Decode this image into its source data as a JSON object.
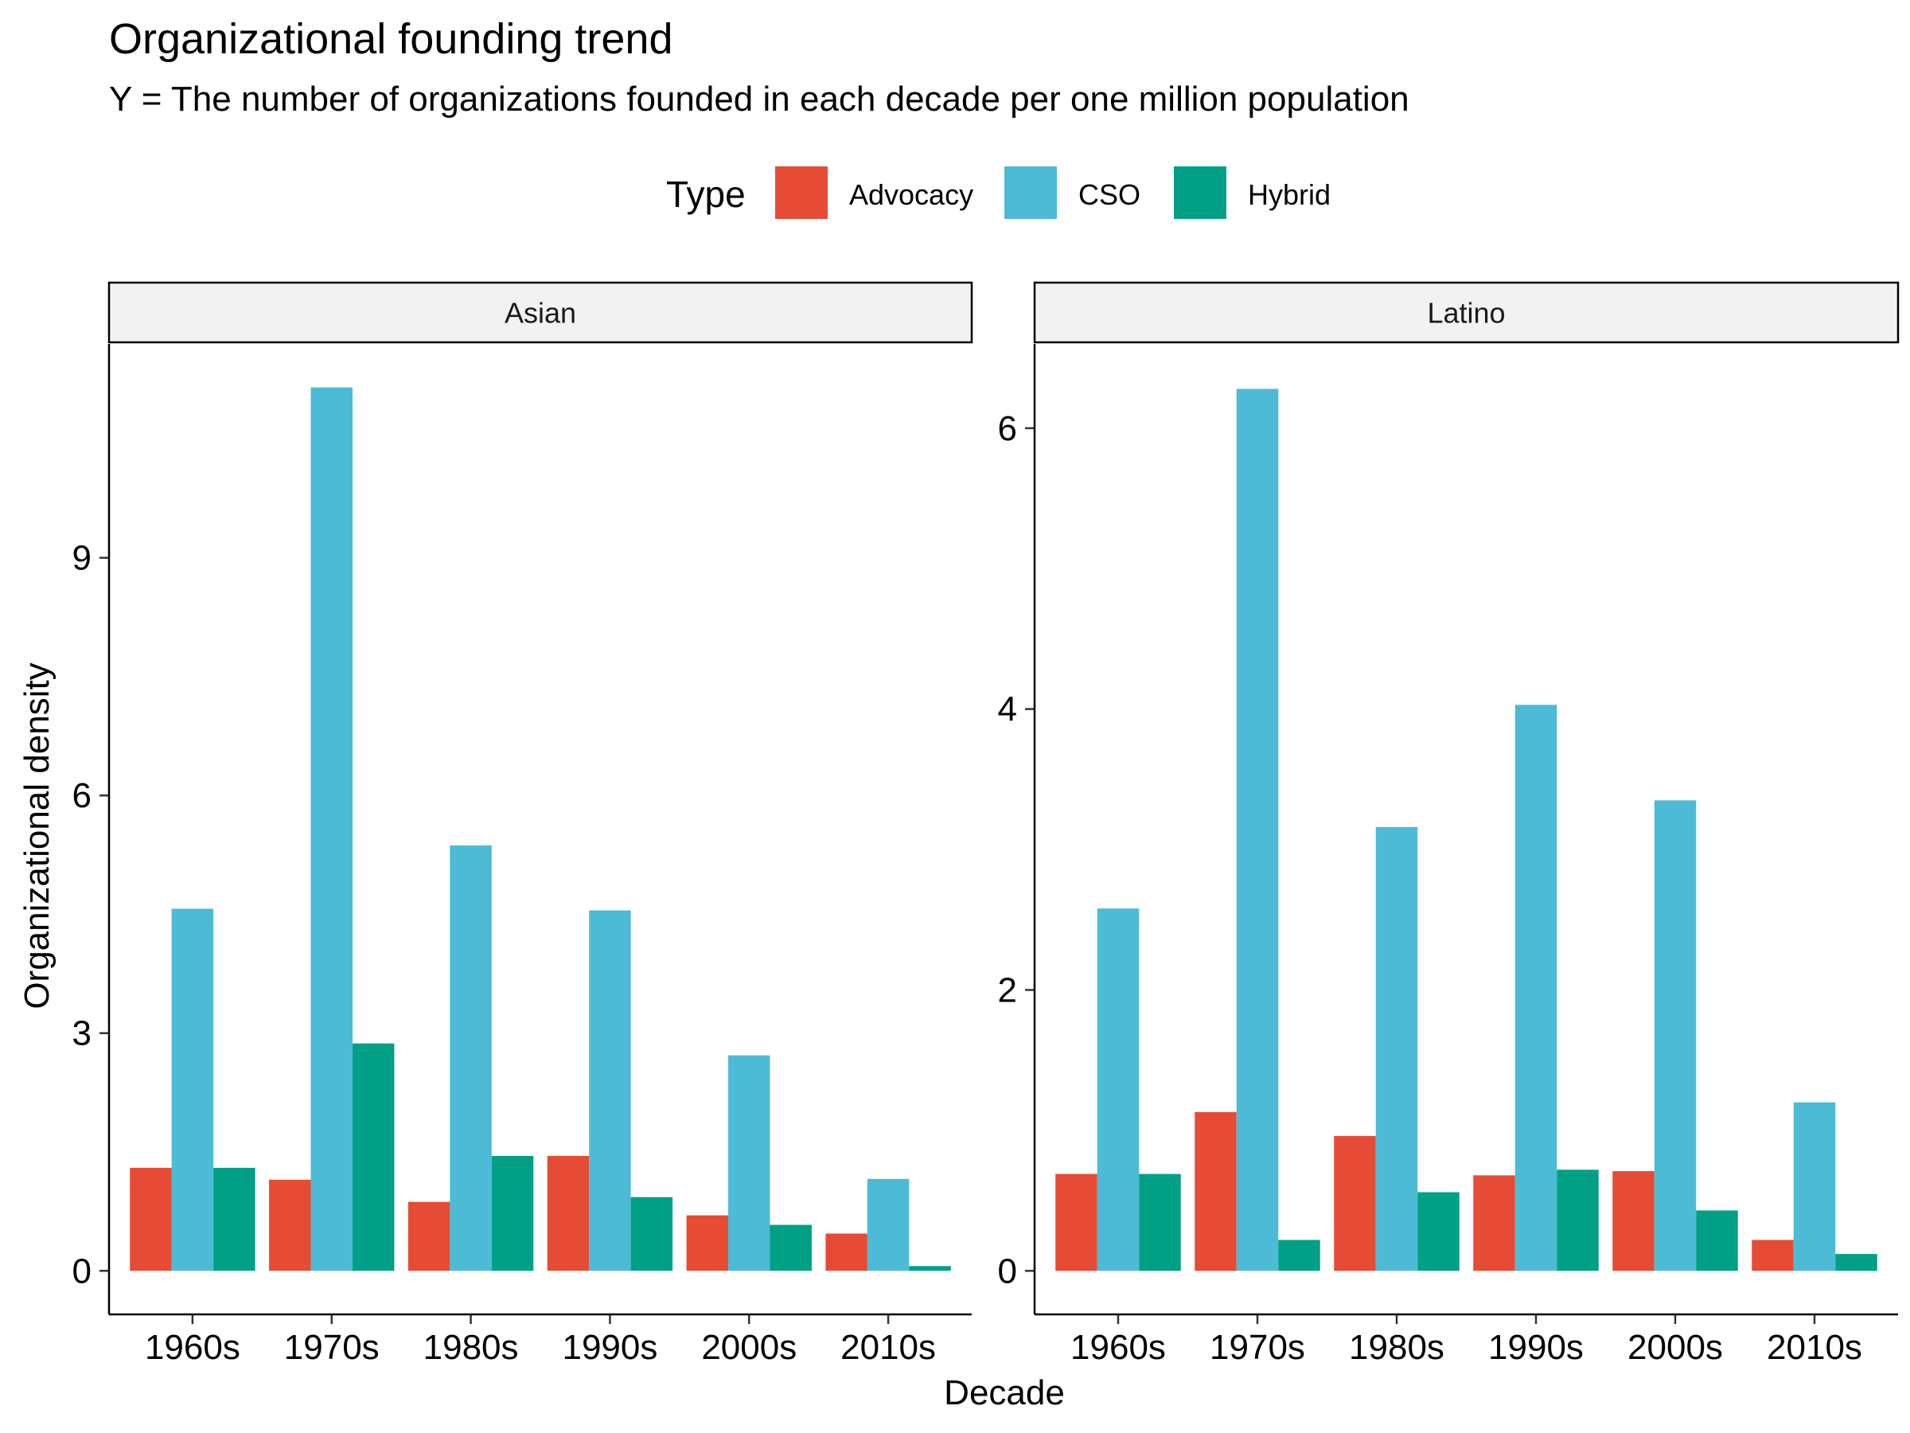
{
  "title": "Organizational founding trend",
  "subtitle": "Y = The number of organizations founded in each decade per one million population",
  "legend": {
    "title": "Type",
    "items": [
      {
        "label": "Advocacy",
        "color": "#E64B35"
      },
      {
        "label": "CSO",
        "color": "#4DBBD5"
      },
      {
        "label": "Hybrid",
        "color": "#00A087"
      }
    ]
  },
  "chart_data": [
    {
      "type": "bar",
      "facet": "Asian",
      "categories": [
        "1960s",
        "1970s",
        "1980s",
        "1990s",
        "2000s",
        "2010s"
      ],
      "series": [
        {
          "name": "Advocacy",
          "values": [
            1.3,
            1.15,
            0.87,
            1.45,
            0.7,
            0.47
          ]
        },
        {
          "name": "CSO",
          "values": [
            4.57,
            11.15,
            5.37,
            4.55,
            2.72,
            1.16
          ]
        },
        {
          "name": "Hybrid",
          "values": [
            1.3,
            2.87,
            1.45,
            0.93,
            0.58,
            0.06
          ]
        }
      ],
      "yticks": [
        0,
        3,
        6,
        9
      ],
      "ylim": [
        -0.55,
        11.7
      ],
      "xlabel": "Decade",
      "ylabel": "Organizational density",
      "legend_position": "top"
    },
    {
      "type": "bar",
      "facet": "Latino",
      "categories": [
        "1960s",
        "1970s",
        "1980s",
        "1990s",
        "2000s",
        "2010s"
      ],
      "series": [
        {
          "name": "Advocacy",
          "values": [
            0.69,
            1.13,
            0.96,
            0.68,
            0.71,
            0.22
          ]
        },
        {
          "name": "CSO",
          "values": [
            2.58,
            6.28,
            3.16,
            4.03,
            3.35,
            1.2
          ]
        },
        {
          "name": "Hybrid",
          "values": [
            0.69,
            0.22,
            0.56,
            0.72,
            0.43,
            0.12
          ]
        }
      ],
      "yticks": [
        0,
        2,
        4,
        6
      ],
      "ylim": [
        -0.31,
        6.6
      ],
      "xlabel": "Decade",
      "ylabel": "Organizational density",
      "legend_position": "top"
    }
  ]
}
